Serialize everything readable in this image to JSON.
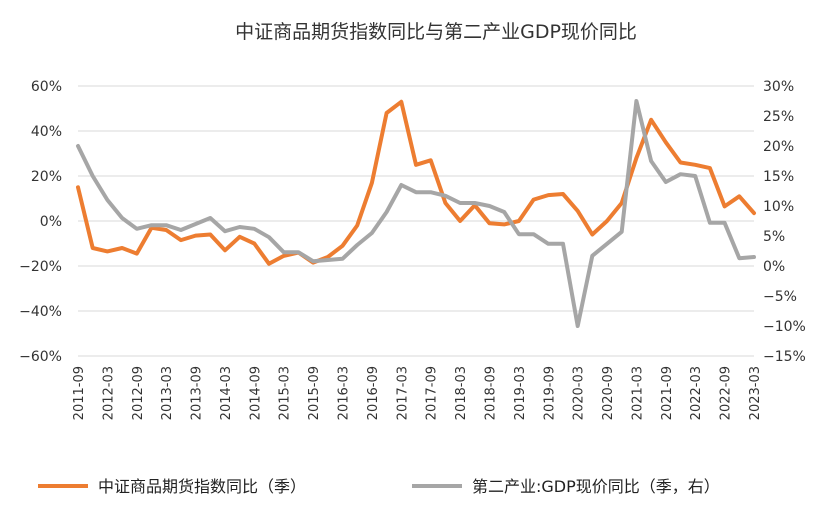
{
  "chart_data": {
    "type": "line",
    "title": "中证商品期货指数同比与第二产业GDP现价同比",
    "x_tick_labels": [
      "2011-09",
      "2012-03",
      "2012-09",
      "2013-03",
      "2013-09",
      "2014-03",
      "2014-09",
      "2015-03",
      "2015-09",
      "2016-03",
      "2016-09",
      "2017-03",
      "2017-09",
      "2018-03",
      "2018-09",
      "2019-03",
      "2019-09",
      "2020-03",
      "2020-09",
      "2021-03",
      "2021-09",
      "2022-03",
      "2022-09",
      "2023-03"
    ],
    "x": [
      "2011-09",
      "2011-12",
      "2012-03",
      "2012-06",
      "2012-09",
      "2012-12",
      "2013-03",
      "2013-06",
      "2013-09",
      "2013-12",
      "2014-03",
      "2014-06",
      "2014-09",
      "2014-12",
      "2015-03",
      "2015-06",
      "2015-09",
      "2015-12",
      "2016-03",
      "2016-06",
      "2016-09",
      "2016-12",
      "2017-03",
      "2017-06",
      "2017-09",
      "2017-12",
      "2018-03",
      "2018-06",
      "2018-09",
      "2018-12",
      "2019-03",
      "2019-06",
      "2019-09",
      "2019-12",
      "2020-03",
      "2020-06",
      "2020-09",
      "2020-12",
      "2021-03",
      "2021-06",
      "2021-09",
      "2021-12",
      "2022-03",
      "2022-06",
      "2022-09",
      "2022-12",
      "2023-03"
    ],
    "y_left": {
      "ticks": [
        "60%",
        "40%",
        "20%",
        "0%",
        "−20%",
        "−40%",
        "−60%"
      ],
      "ylim": [
        -60,
        60
      ]
    },
    "y_right": {
      "ticks": [
        "30%",
        "25%",
        "20%",
        "15%",
        "10%",
        "5%",
        "0%",
        "−5%",
        "−10%",
        "−15%"
      ],
      "ylim": [
        -15,
        30
      ]
    },
    "series": [
      {
        "name": "中证商品期货指数同比（季）",
        "axis": "left",
        "color": "#ED7D31",
        "values": [
          15,
          -12,
          -13.5,
          -12,
          -14.5,
          -3,
          -4,
          -8.5,
          -6.5,
          -6,
          -13,
          -7,
          -10,
          -19,
          -15.5,
          -14,
          -18.5,
          -16,
          -11,
          -2,
          17,
          48,
          53,
          25,
          27,
          8,
          0,
          7,
          -1,
          -1.5,
          0,
          9.5,
          11.5,
          12,
          4.5,
          -6,
          0,
          8,
          28,
          45,
          35,
          26,
          25,
          23.5,
          6.5,
          11,
          3.5
        ]
      },
      {
        "name": "第二产业:GDP现价同比（季，右）",
        "axis": "right",
        "color": "#A6A6A6",
        "values": [
          20,
          15,
          11,
          8,
          6.2,
          6.8,
          6.8,
          6,
          7,
          8,
          5.8,
          6.5,
          6.2,
          4.8,
          2.3,
          2.3,
          0.8,
          1,
          1.2,
          3.5,
          5.5,
          9,
          13.5,
          12.3,
          12.3,
          11.7,
          10.5,
          10.5,
          10,
          9,
          5.3,
          5.3,
          3.7,
          3.7,
          -10,
          1.7,
          3.7,
          5.7,
          27.5,
          17.5,
          14,
          15.3,
          15,
          7.2,
          7.2,
          1.3,
          1.5
        ]
      }
    ],
    "legend": "bottom",
    "grid": "horizontal"
  }
}
